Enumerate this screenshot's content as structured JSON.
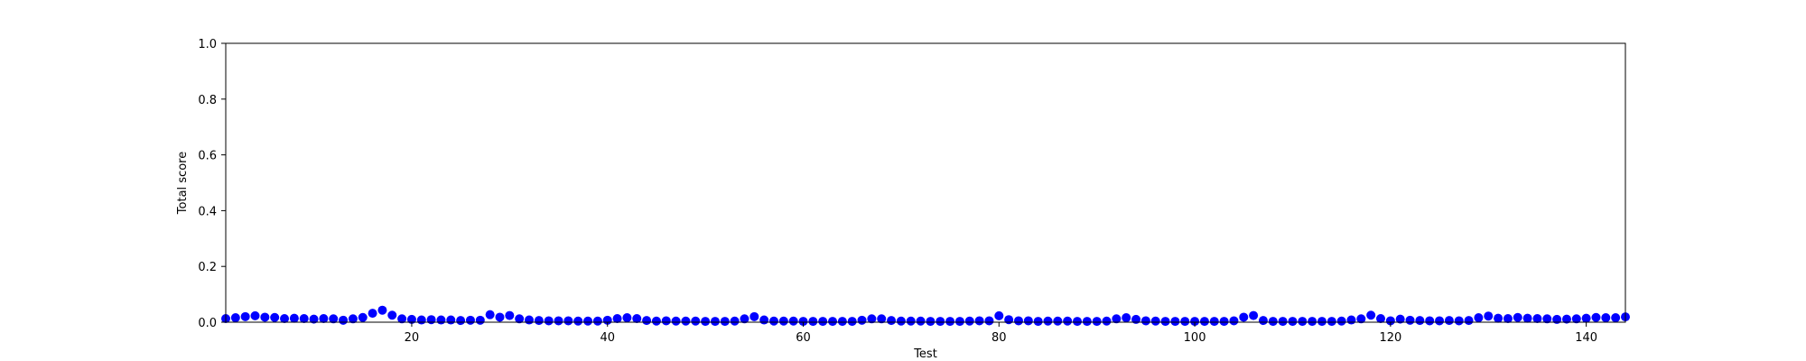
{
  "chart_data": {
    "type": "scatter",
    "title": "",
    "xlabel": "Test",
    "ylabel": "Total score",
    "xlim": [
      1,
      144
    ],
    "ylim": [
      0,
      1.0
    ],
    "x_ticks": [
      20,
      40,
      60,
      80,
      100,
      120,
      140
    ],
    "y_ticks": [
      0.0,
      0.2,
      0.4,
      0.6,
      0.8,
      1.0
    ],
    "x_tick_labels": [
      "20",
      "40",
      "60",
      "80",
      "100",
      "120",
      "140"
    ],
    "y_tick_labels": [
      "0.0",
      "0.2",
      "0.4",
      "0.6",
      "0.8",
      "1.0"
    ],
    "grid": false,
    "marker_color": "#0000ff",
    "series": [
      {
        "x": [
          1,
          2,
          3,
          4,
          5,
          6,
          7,
          8,
          9,
          10,
          11,
          12,
          13,
          14,
          15,
          16,
          17,
          18,
          19,
          20,
          21,
          22,
          23,
          24,
          25,
          26,
          27,
          28,
          29,
          30,
          31,
          32,
          33,
          34,
          35,
          36,
          37,
          38,
          39,
          40,
          41,
          42,
          43,
          44,
          45,
          46,
          47,
          48,
          49,
          50,
          51,
          52,
          53,
          54,
          55,
          56,
          57,
          58,
          59,
          60,
          61,
          62,
          63,
          64,
          65,
          66,
          67,
          68,
          69,
          70,
          71,
          72,
          73,
          74,
          75,
          76,
          77,
          78,
          79,
          80,
          81,
          82,
          83,
          84,
          85,
          86,
          87,
          88,
          89,
          90,
          91,
          92,
          93,
          94,
          95,
          96,
          97,
          98,
          99,
          100,
          101,
          102,
          103,
          104,
          105,
          106,
          107,
          108,
          109,
          110,
          111,
          112,
          113,
          114,
          115,
          116,
          117,
          118,
          119,
          120,
          121,
          122,
          123,
          124,
          125,
          126,
          127,
          128,
          129,
          130,
          131,
          132,
          133,
          134,
          135,
          136,
          137,
          138,
          139,
          140,
          141,
          142,
          143,
          144
        ],
        "y": [
          0.013,
          0.016,
          0.02,
          0.023,
          0.018,
          0.017,
          0.013,
          0.014,
          0.013,
          0.011,
          0.013,
          0.012,
          0.007,
          0.012,
          0.017,
          0.032,
          0.043,
          0.025,
          0.012,
          0.01,
          0.008,
          0.009,
          0.008,
          0.008,
          0.006,
          0.007,
          0.007,
          0.027,
          0.018,
          0.024,
          0.012,
          0.008,
          0.006,
          0.005,
          0.005,
          0.005,
          0.004,
          0.004,
          0.004,
          0.007,
          0.013,
          0.016,
          0.013,
          0.006,
          0.004,
          0.005,
          0.004,
          0.004,
          0.004,
          0.003,
          0.003,
          0.003,
          0.004,
          0.012,
          0.02,
          0.008,
          0.004,
          0.004,
          0.004,
          0.003,
          0.003,
          0.003,
          0.003,
          0.003,
          0.003,
          0.007,
          0.012,
          0.012,
          0.006,
          0.004,
          0.004,
          0.004,
          0.003,
          0.003,
          0.003,
          0.003,
          0.004,
          0.005,
          0.005,
          0.023,
          0.009,
          0.005,
          0.005,
          0.003,
          0.004,
          0.004,
          0.004,
          0.003,
          0.003,
          0.003,
          0.004,
          0.012,
          0.016,
          0.01,
          0.005,
          0.004,
          0.003,
          0.003,
          0.003,
          0.003,
          0.003,
          0.003,
          0.003,
          0.005,
          0.018,
          0.024,
          0.006,
          0.003,
          0.003,
          0.003,
          0.003,
          0.003,
          0.003,
          0.003,
          0.004,
          0.008,
          0.012,
          0.025,
          0.013,
          0.005,
          0.011,
          0.007,
          0.006,
          0.005,
          0.005,
          0.006,
          0.005,
          0.006,
          0.016,
          0.022,
          0.014,
          0.013,
          0.017,
          0.014,
          0.013,
          0.012,
          0.01,
          0.011,
          0.012,
          0.014,
          0.017,
          0.016,
          0.016,
          0.019
        ]
      }
    ]
  }
}
